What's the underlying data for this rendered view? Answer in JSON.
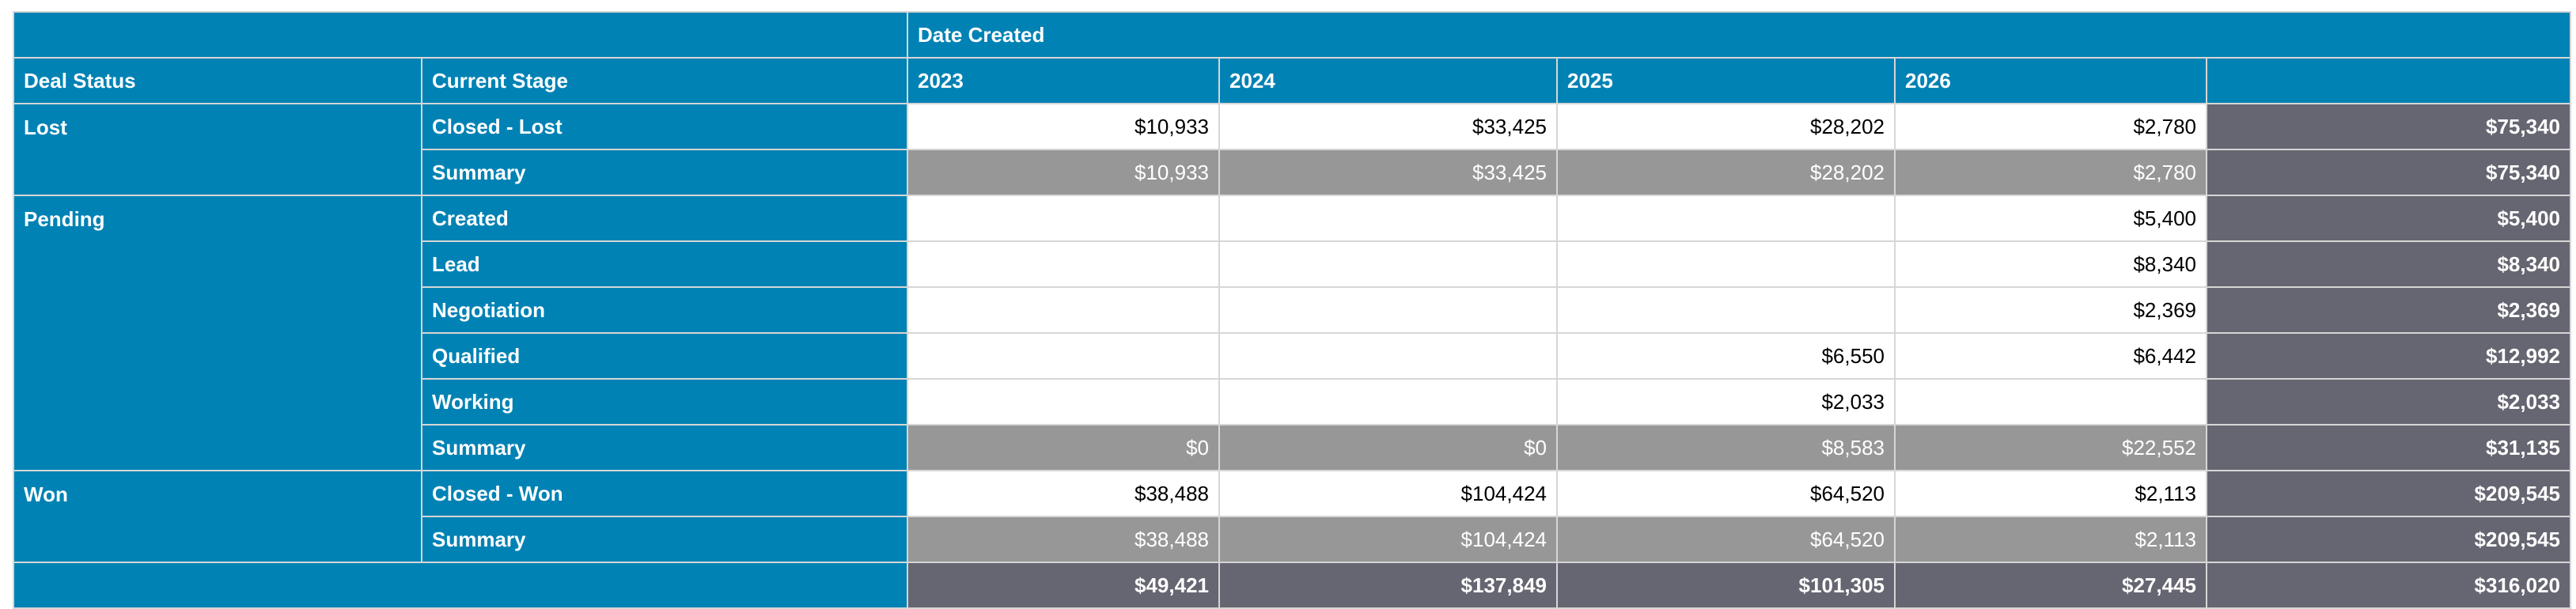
{
  "header": {
    "date_created": "Date Created",
    "deal_status": "Deal Status",
    "current_stage": "Current Stage",
    "years": [
      "2023",
      "2024",
      "2025",
      "2026"
    ]
  },
  "groups": [
    {
      "status": "Lost",
      "rows": [
        {
          "stage": "Closed - Lost",
          "values": [
            "$10,933",
            "$33,425",
            "$28,202",
            "$2,780"
          ],
          "total": "$75,340"
        }
      ],
      "summary": {
        "label": "Summary",
        "values": [
          "$10,933",
          "$33,425",
          "$28,202",
          "$2,780"
        ],
        "total": "$75,340"
      }
    },
    {
      "status": "Pending",
      "rows": [
        {
          "stage": "Created",
          "values": [
            "",
            "",
            "",
            "$5,400"
          ],
          "total": "$5,400"
        },
        {
          "stage": "Lead",
          "values": [
            "",
            "",
            "",
            "$8,340"
          ],
          "total": "$8,340"
        },
        {
          "stage": "Negotiation",
          "values": [
            "",
            "",
            "",
            "$2,369"
          ],
          "total": "$2,369"
        },
        {
          "stage": "Qualified",
          "values": [
            "",
            "",
            "$6,550",
            "$6,442"
          ],
          "total": "$12,992"
        },
        {
          "stage": "Working",
          "values": [
            "",
            "",
            "$2,033",
            ""
          ],
          "total": "$2,033"
        }
      ],
      "summary": {
        "label": "Summary",
        "values": [
          "$0",
          "$0",
          "$8,583",
          "$22,552"
        ],
        "total": "$31,135"
      }
    },
    {
      "status": "Won",
      "rows": [
        {
          "stage": "Closed - Won",
          "values": [
            "$38,488",
            "$104,424",
            "$64,520",
            "$2,113"
          ],
          "total": "$209,545"
        }
      ],
      "summary": {
        "label": "Summary",
        "values": [
          "$38,488",
          "$104,424",
          "$64,520",
          "$2,113"
        ],
        "total": "$209,545"
      }
    }
  ],
  "grand_total": {
    "values": [
      "$49,421",
      "$137,849",
      "$101,305",
      "$27,445"
    ],
    "total": "$316,020"
  },
  "colors": {
    "header_blue": "#0082b4",
    "summary_gray": "#979797",
    "total_dark": "#666672",
    "border": "#d6d6d6"
  }
}
